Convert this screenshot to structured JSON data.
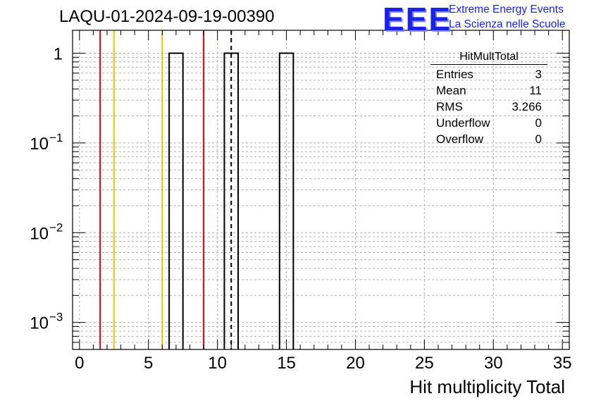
{
  "run_title": "LAQU-01-2024-09-19-00390",
  "logo": {
    "mark": "EEE",
    "line1": "Extreme Energy Events",
    "line2": "La Scienza nelle Scuole",
    "color": "#1a22e8"
  },
  "stats_box": {
    "title": "HitMultTotal",
    "rows": [
      {
        "label": "Entries",
        "value": "3"
      },
      {
        "label": "Mean",
        "value": "11"
      },
      {
        "label": "RMS",
        "value": "3.266"
      },
      {
        "label": "Underflow",
        "value": "0"
      },
      {
        "label": "Overflow",
        "value": "0"
      }
    ]
  },
  "chart_data": {
    "type": "bar",
    "title": "LAQU-01-2024-09-19-00390",
    "xlabel": "Hit multiplicity Total",
    "ylabel": "",
    "xlim": [
      -0.5,
      35.5
    ],
    "ylim": [
      0.0005,
      1.8
    ],
    "yscale": "log",
    "grid": true,
    "bins": [
      {
        "x": 7,
        "value": 1
      },
      {
        "x": 11,
        "value": 1
      },
      {
        "x": 15,
        "value": 1
      }
    ],
    "bin_width": 1,
    "xticks": [
      0,
      5,
      10,
      15,
      20,
      25,
      30,
      35
    ],
    "yticks": [
      {
        "value": 1,
        "label": "1"
      },
      {
        "value": 0.1,
        "label": "10",
        "exp": "−1"
      },
      {
        "value": 0.01,
        "label": "10",
        "exp": "−2"
      },
      {
        "value": 0.001,
        "label": "10",
        "exp": "−3"
      }
    ],
    "vlines": [
      {
        "x": 1.5,
        "color": "#e8000b",
        "style": "solid"
      },
      {
        "x": 2.5,
        "color": "#f0c000",
        "style": "solid"
      },
      {
        "x": 6.0,
        "color": "#f0c000",
        "style": "solid"
      },
      {
        "x": 9.0,
        "color": "#e8000b",
        "style": "solid"
      },
      {
        "x": 11.0,
        "color": "#000000",
        "style": "dashed"
      }
    ]
  }
}
